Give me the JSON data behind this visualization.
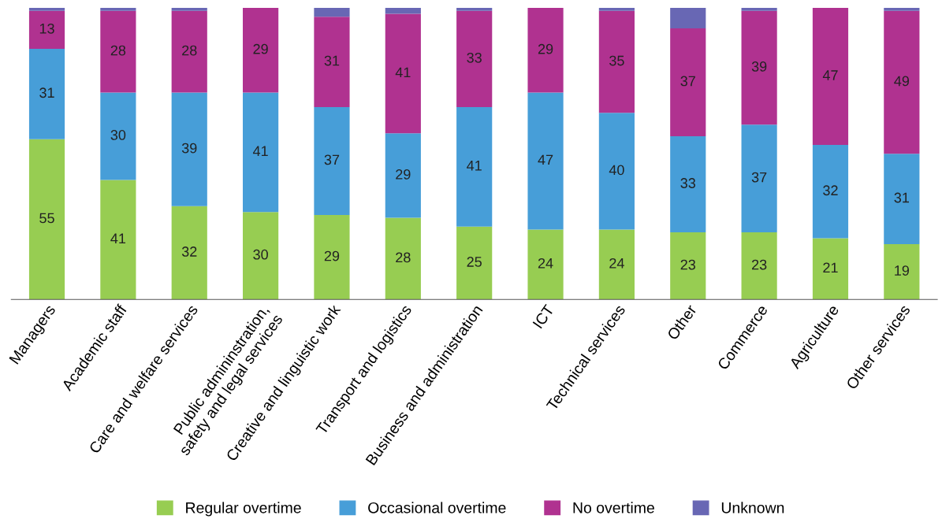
{
  "chart_data": {
    "type": "bar",
    "stacked": true,
    "categories": [
      "Managers",
      "Academic staff",
      "Care and welfare services",
      "Public admininstration,\nsafety and legal services",
      "Creative and linguistic work",
      "Transport and logistics",
      "Business and administration",
      "ICT",
      "Technical services",
      "Other",
      "Commerce",
      "Agriculture",
      "Other services"
    ],
    "series": [
      {
        "name": "Regular overtime",
        "color": "#97cd52",
        "values": [
          55,
          41,
          32,
          30,
          29,
          28,
          25,
          24,
          24,
          23,
          23,
          21,
          19
        ],
        "value_labels": [
          "55",
          "41",
          "32",
          "30",
          "29",
          "28",
          "25",
          "24",
          "24",
          "23",
          "23",
          "21",
          "19"
        ]
      },
      {
        "name": "Occasional overtime",
        "color": "#479ed8",
        "values": [
          31,
          30,
          39,
          41,
          37,
          29,
          41,
          47,
          40,
          33,
          37,
          32,
          31
        ],
        "value_labels": [
          "31",
          "30",
          "39",
          "41",
          "37",
          "29",
          "41",
          "47",
          "40",
          "33",
          "37",
          "32",
          "31"
        ]
      },
      {
        "name": "No overtime",
        "color": "#b03290",
        "values": [
          13,
          28,
          28,
          29,
          31,
          41,
          33,
          29,
          35,
          37,
          39,
          47,
          49
        ],
        "value_labels": [
          "13",
          "28",
          "28",
          "29",
          "31",
          "41",
          "33",
          "29",
          "35",
          "37",
          "39",
          "47",
          "49"
        ]
      },
      {
        "name": "Unknown",
        "color": "#6867b4",
        "values": [
          1,
          1,
          1,
          0,
          3,
          2,
          1,
          0,
          1,
          7,
          1,
          0,
          1
        ]
      }
    ],
    "ylim": [
      0,
      100
    ],
    "tick_labels": "x",
    "grid": false,
    "legend": "bottom"
  }
}
